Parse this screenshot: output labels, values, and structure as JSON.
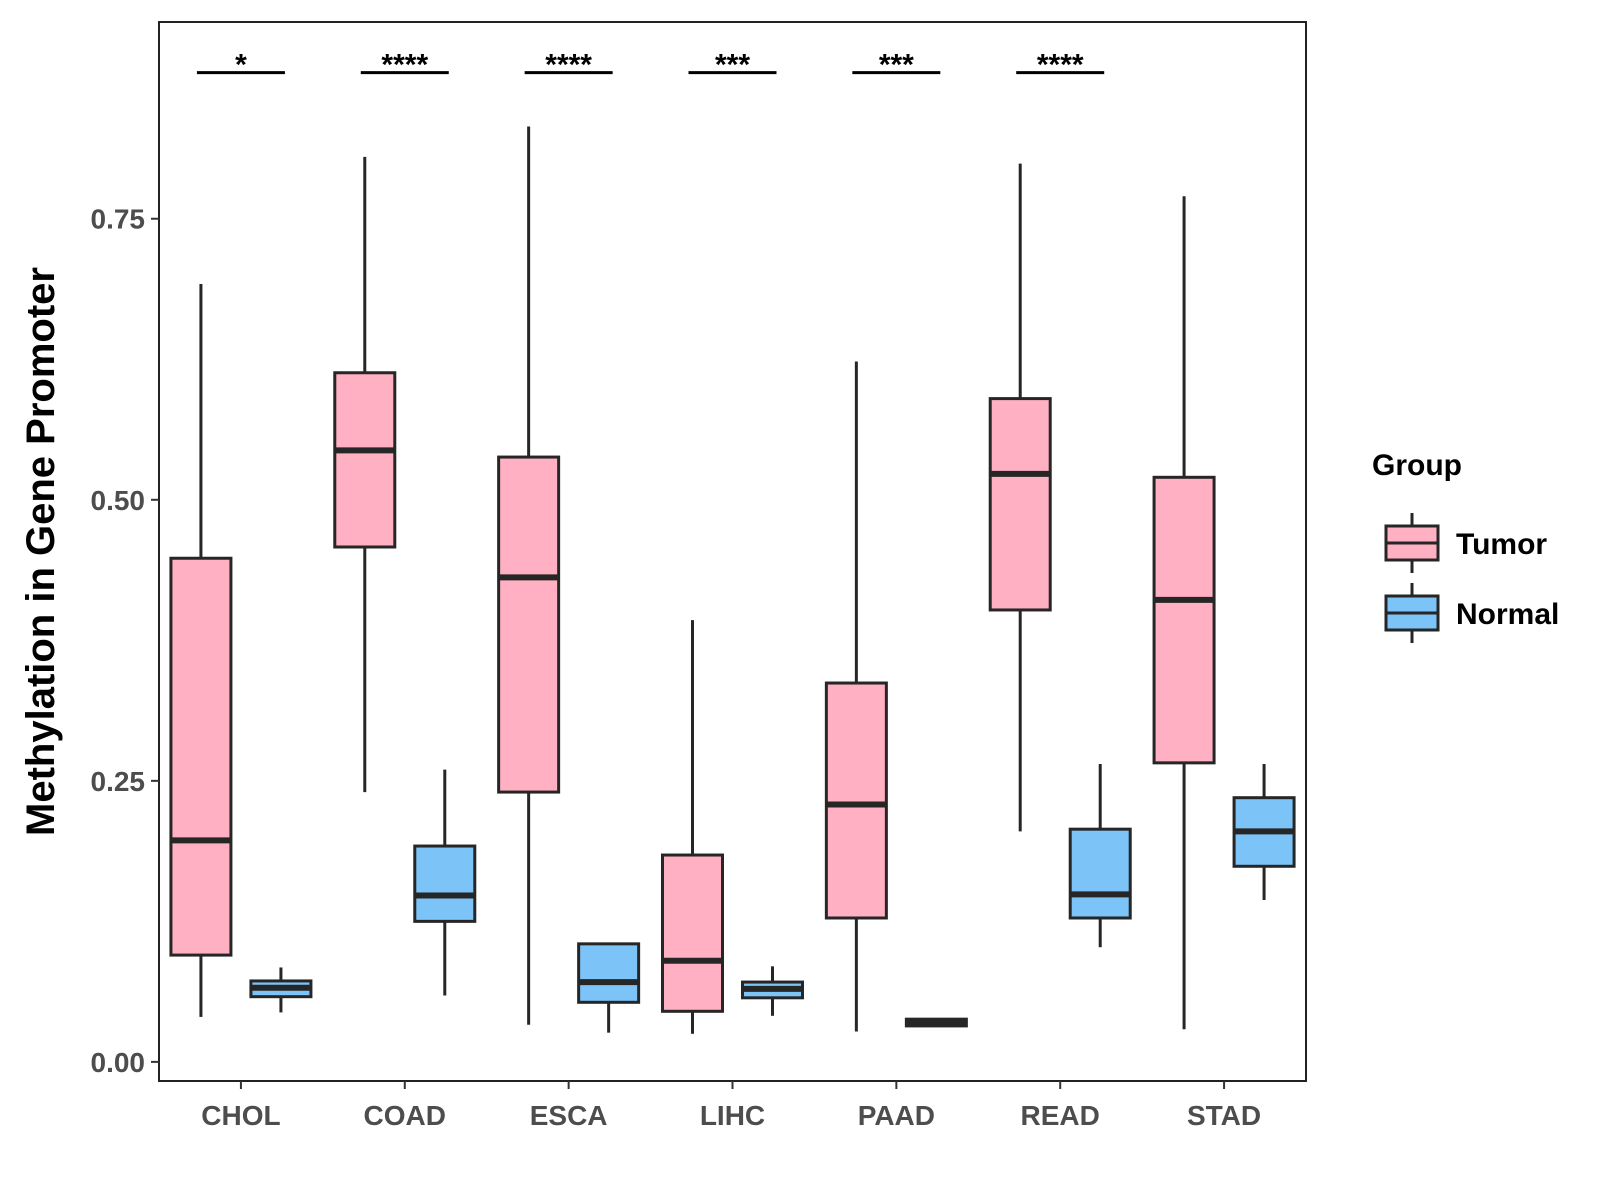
{
  "chart_data": {
    "type": "boxplot",
    "title": "",
    "xlabel": "",
    "ylabel": "Methylation in Gene Promoter",
    "ylim": [
      -0.017,
      0.925
    ],
    "yticks": [
      0.0,
      0.25,
      0.5,
      0.75
    ],
    "ytick_labels": [
      "0.00",
      "0.25",
      "0.50",
      "0.75"
    ],
    "categories": [
      "CHOL",
      "COAD",
      "ESCA",
      "LIHC",
      "PAAD",
      "READ",
      "STAD"
    ],
    "legend": {
      "title": "Group",
      "position": "right",
      "entries": [
        {
          "name": "Tumor",
          "color": "#FFB0C2"
        },
        {
          "name": "Normal",
          "color": "#7CC3F7"
        }
      ]
    },
    "series": [
      {
        "name": "Tumor",
        "color": "#FFB0C2",
        "boxes": [
          {
            "category": "CHOL",
            "whisker_low": 0.04,
            "q1": 0.095,
            "median": 0.197,
            "q3": 0.448,
            "whisker_high": 0.692
          },
          {
            "category": "COAD",
            "whisker_low": 0.24,
            "q1": 0.458,
            "median": 0.544,
            "q3": 0.613,
            "whisker_high": 0.805
          },
          {
            "category": "ESCA",
            "whisker_low": 0.033,
            "q1": 0.24,
            "median": 0.431,
            "q3": 0.538,
            "whisker_high": 0.832
          },
          {
            "category": "LIHC",
            "whisker_low": 0.025,
            "q1": 0.045,
            "median": 0.09,
            "q3": 0.184,
            "whisker_high": 0.393
          },
          {
            "category": "PAAD",
            "whisker_low": 0.027,
            "q1": 0.128,
            "median": 0.229,
            "q3": 0.337,
            "whisker_high": 0.623
          },
          {
            "category": "READ",
            "whisker_low": 0.205,
            "q1": 0.402,
            "median": 0.523,
            "q3": 0.59,
            "whisker_high": 0.799
          },
          {
            "category": "STAD",
            "whisker_low": 0.029,
            "q1": 0.266,
            "median": 0.411,
            "q3": 0.52,
            "whisker_high": 0.77
          }
        ]
      },
      {
        "name": "Normal",
        "color": "#7CC3F7",
        "boxes": [
          {
            "category": "CHOL",
            "whisker_low": 0.044,
            "q1": 0.058,
            "median": 0.066,
            "q3": 0.072,
            "whisker_high": 0.084
          },
          {
            "category": "COAD",
            "whisker_low": 0.059,
            "q1": 0.125,
            "median": 0.148,
            "q3": 0.192,
            "whisker_high": 0.26
          },
          {
            "category": "ESCA",
            "whisker_low": 0.026,
            "q1": 0.053,
            "median": 0.071,
            "q3": 0.105,
            "whisker_high": 0.105
          },
          {
            "category": "LIHC",
            "whisker_low": 0.041,
            "q1": 0.057,
            "median": 0.065,
            "q3": 0.071,
            "whisker_high": 0.085
          },
          {
            "category": "PAAD",
            "whisker_low": 0.032,
            "q1": 0.032,
            "median": 0.035,
            "q3": 0.038,
            "whisker_high": 0.038
          },
          {
            "category": "READ",
            "whisker_low": 0.102,
            "q1": 0.128,
            "median": 0.149,
            "q3": 0.207,
            "whisker_high": 0.265
          },
          {
            "category": "STAD",
            "whisker_low": 0.144,
            "q1": 0.174,
            "median": 0.205,
            "q3": 0.235,
            "whisker_high": 0.265
          }
        ]
      }
    ],
    "annotations": [
      {
        "category": "CHOL",
        "label": "*"
      },
      {
        "category": "COAD",
        "label": "****"
      },
      {
        "category": "ESCA",
        "label": "****"
      },
      {
        "category": "LIHC",
        "label": "***"
      },
      {
        "category": "PAAD",
        "label": "***"
      },
      {
        "category": "READ",
        "label": "****"
      }
    ],
    "annotation_y": 0.88,
    "grid": false
  }
}
